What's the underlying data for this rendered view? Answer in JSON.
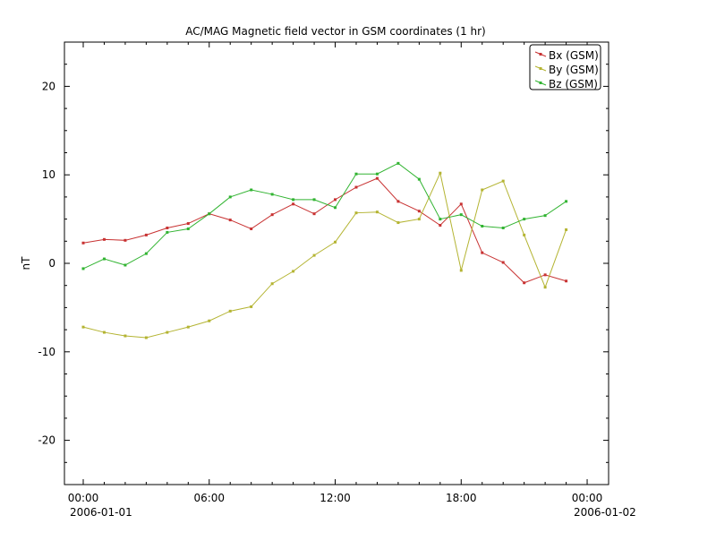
{
  "chart_data": {
    "type": "line",
    "title": "AC/MAG  Magnetic field vector in GSM coordinates (1 hr)",
    "xlabel": "",
    "ylabel": "nT",
    "xlim": [
      "2005-12-31T23:06",
      "2006-01-02T01:00"
    ],
    "ylim": [
      -25,
      25
    ],
    "yticks": [
      {
        "value": 20,
        "label": "20"
      },
      {
        "value": 10,
        "label": "10"
      },
      {
        "value": 0,
        "label": "0"
      },
      {
        "value": -10,
        "label": "-10"
      },
      {
        "value": -20,
        "label": "-20"
      }
    ],
    "xticks": [
      {
        "hour": 0,
        "label": "00:00",
        "sublabel": "2006-01-01"
      },
      {
        "hour": 6,
        "label": "06:00",
        "sublabel": ""
      },
      {
        "hour": 12,
        "label": "12:00",
        "sublabel": ""
      },
      {
        "hour": 18,
        "label": "18:00",
        "sublabel": ""
      },
      {
        "hour": 24,
        "label": "00:00",
        "sublabel": "2006-01-02"
      }
    ],
    "x_hours": [
      0,
      1,
      2,
      3,
      4,
      5,
      6,
      7,
      8,
      9,
      10,
      11,
      12,
      13,
      14,
      15,
      16,
      17,
      18,
      19,
      20,
      21,
      22,
      23
    ],
    "grid": false,
    "legend_position": "top-right",
    "series": [
      {
        "name": "Bx (GSM)",
        "color": "#c83232",
        "values": [
          2.3,
          2.7,
          2.6,
          3.2,
          4.0,
          4.5,
          5.6,
          4.9,
          3.9,
          5.5,
          6.7,
          5.6,
          7.2,
          8.6,
          9.6,
          7.0,
          5.9,
          4.3,
          6.7,
          1.2,
          0.1,
          -2.2,
          -1.3,
          -2.0
        ]
      },
      {
        "name": "By (GSM)",
        "color": "#b4b432",
        "values": [
          -7.2,
          -7.8,
          -8.2,
          -8.4,
          -7.8,
          -7.2,
          -6.5,
          -5.4,
          -4.9,
          -2.3,
          -0.9,
          0.9,
          2.4,
          5.7,
          5.8,
          4.6,
          5.0,
          10.2,
          -0.8,
          8.3,
          9.3,
          3.2,
          -2.7,
          3.8
        ]
      },
      {
        "name": "Bz (GSM)",
        "color": "#32b432",
        "values": [
          -0.6,
          0.5,
          -0.2,
          1.1,
          3.5,
          3.9,
          5.6,
          7.5,
          8.3,
          7.8,
          7.2,
          7.2,
          6.3,
          10.1,
          10.1,
          11.3,
          9.5,
          5.0,
          5.5,
          4.2,
          4.0,
          5.0,
          5.4,
          7.0
        ]
      }
    ]
  }
}
